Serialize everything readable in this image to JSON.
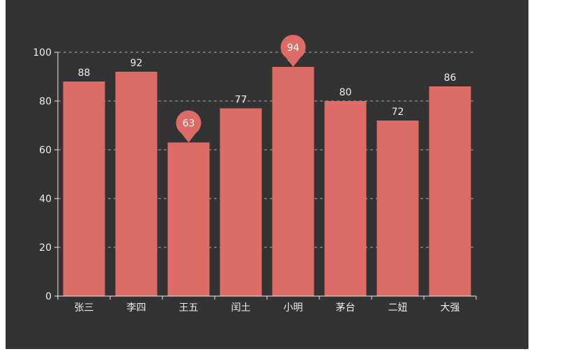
{
  "chart_data": {
    "type": "bar",
    "title": "",
    "xlabel": "",
    "ylabel": "",
    "categories": [
      "张三",
      "李四",
      "王五",
      "闰土",
      "小明",
      "茅台",
      "二妞",
      "大强"
    ],
    "series": [
      {
        "name": "",
        "values": [
          88,
          92,
          63,
          77,
          94,
          80,
          72,
          86
        ],
        "data_labels": [
          "88",
          "92",
          "63",
          "77",
          "94",
          "80",
          "72",
          "86"
        ]
      }
    ],
    "ylim": [
      0,
      100
    ],
    "yticks": [
      0,
      20,
      40,
      60,
      80,
      100
    ],
    "grid": true,
    "mark_points": [
      {
        "type": "max",
        "category": "小明",
        "value": 94,
        "label": "94"
      },
      {
        "type": "min",
        "category": "王五",
        "value": 63,
        "label": "63"
      }
    ],
    "colors": {
      "background": "#333333",
      "bar": "#dd6b66",
      "text": "#eeeeee",
      "axis": "#eeeeee",
      "grid": "#aaaaaa"
    }
  }
}
